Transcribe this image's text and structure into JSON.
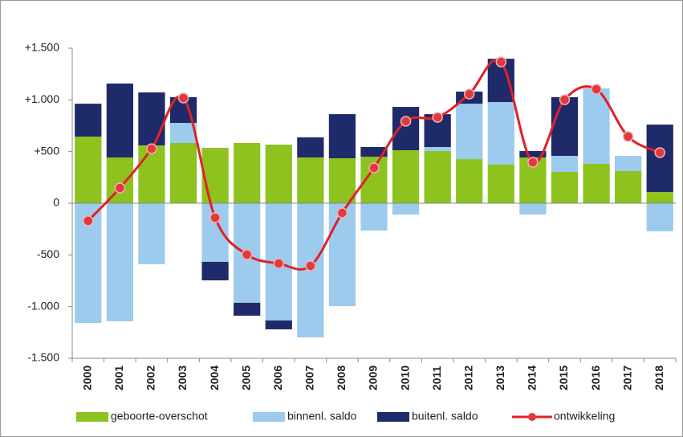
{
  "chart_data": {
    "type": "stacked-bar-line",
    "categories": [
      "2000",
      "2001",
      "2002",
      "2003",
      "2004",
      "2005",
      "2006",
      "2007",
      "2008",
      "2009",
      "2010",
      "2011",
      "2012",
      "2013",
      "2014",
      "2015",
      "2016",
      "2017",
      "2018"
    ],
    "series": [
      {
        "name": "geboorte-overschot",
        "color": "#8dc21f",
        "type": "bar",
        "values": [
          645,
          443,
          560,
          583,
          536,
          583,
          567,
          443,
          435,
          450,
          513,
          505,
          427,
          373,
          443,
          303,
          381,
          311,
          109
        ]
      },
      {
        "name": "binnenl. saldo",
        "color": "#9dcbed",
        "type": "bar",
        "values": [
          -1158,
          -1142,
          -590,
          194,
          -567,
          -963,
          -1134,
          -1298,
          -995,
          -264,
          -110,
          39,
          536,
          606,
          -109,
          155,
          730,
          147,
          -272
        ]
      },
      {
        "name": "buitenl. saldo",
        "color": "#1f2a6b",
        "type": "bar",
        "values": [
          318,
          715,
          512,
          249,
          -179,
          -125,
          -86,
          194,
          427,
          94,
          419,
          318,
          117,
          419,
          62,
          568,
          0,
          0,
          652
        ]
      },
      {
        "name": "ontwikkeling",
        "color": "#e02127",
        "type": "line",
        "values": [
          -170,
          148,
          528,
          1018,
          -140,
          -497,
          -583,
          -606,
          -93,
          342,
          793,
          831,
          1057,
          1367,
          396,
          1002,
          1103,
          645,
          490
        ]
      }
    ],
    "ylim": [
      -1500,
      1500
    ],
    "yticks": [
      {
        "value": -1500,
        "label": "-1.500"
      },
      {
        "value": -1000,
        "label": "-1.000"
      },
      -500,
      0,
      {
        "value": 500,
        "label": "+500"
      },
      {
        "value": 1000,
        "label": "+1.000"
      },
      {
        "value": 1500,
        "label": "+1.500"
      }
    ],
    "grid": false
  }
}
